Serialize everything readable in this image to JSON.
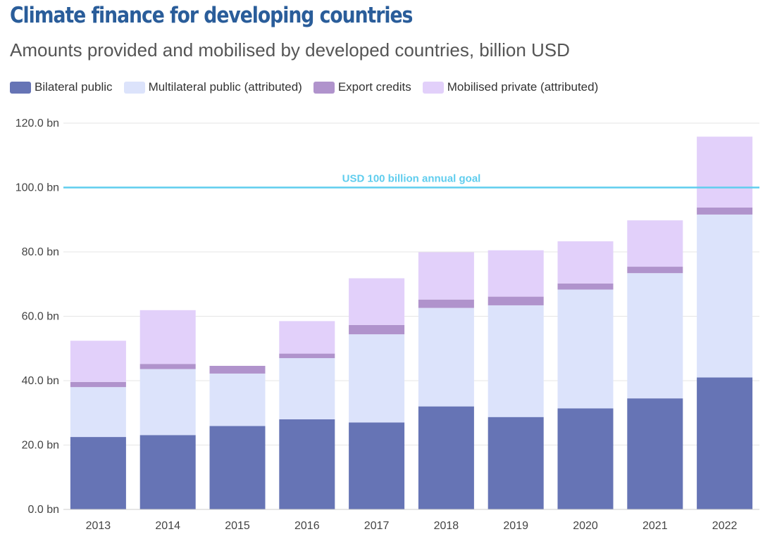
{
  "header": {
    "title": "Climate finance for developing countries",
    "subtitle": "Amounts provided and mobilised by developed countries, billion USD"
  },
  "colors": {
    "title": "#2a5d9a",
    "goal_line": "#5fcdee",
    "grid": "#e6e6e6"
  },
  "chart_data": {
    "type": "bar",
    "stacked": true,
    "categories": [
      "2013",
      "2014",
      "2015",
      "2016",
      "2017",
      "2018",
      "2019",
      "2020",
      "2021",
      "2022"
    ],
    "series": [
      {
        "name": "Bilateral public",
        "color": "#6674b5",
        "values": [
          22.5,
          23.1,
          25.9,
          28.0,
          27.0,
          32.0,
          28.7,
          31.4,
          34.5,
          41.0
        ]
      },
      {
        "name": "Multilateral public (attributed)",
        "color": "#dce3fb",
        "values": [
          15.5,
          20.5,
          16.3,
          19.0,
          27.4,
          30.6,
          34.7,
          36.9,
          38.9,
          50.6
        ]
      },
      {
        "name": "Export credits",
        "color": "#b093cc",
        "values": [
          1.6,
          1.6,
          2.4,
          1.4,
          2.9,
          2.6,
          2.7,
          1.9,
          2.0,
          2.2
        ]
      },
      {
        "name": "Mobilised private (attributed)",
        "color": "#e2d0fa",
        "values": [
          12.8,
          16.7,
          0,
          10.1,
          14.5,
          14.7,
          14.4,
          13.1,
          14.4,
          22.0
        ]
      }
    ],
    "y_tick_values": [
      0,
      20,
      40,
      60,
      80,
      100,
      120
    ],
    "y_tick_labels": [
      "0.0 bn",
      "20.0 bn",
      "40.0 bn",
      "60.0 bn",
      "80.0 bn",
      "100.0 bn",
      "120.0 bn"
    ],
    "ylim": [
      0,
      120
    ],
    "grid": true,
    "legend_position": "top-left",
    "reference_line": {
      "value": 100,
      "label": "USD 100 billion annual goal"
    }
  }
}
